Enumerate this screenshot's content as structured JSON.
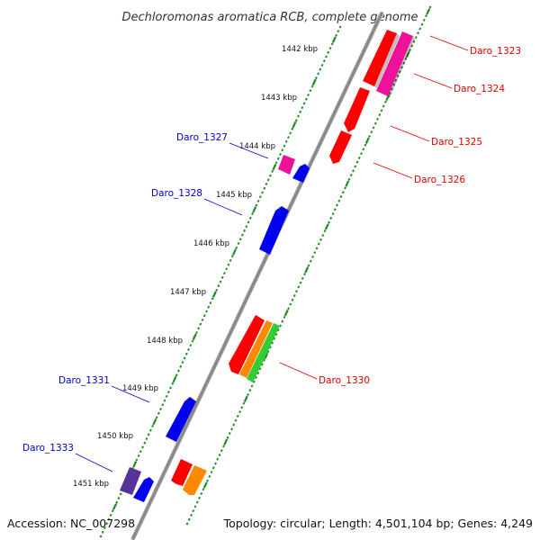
{
  "title": "Dechloromonas aromatica RCB, complete genome",
  "accession": "Accession: NC_007298",
  "topology": "Topology: circular; Length: 4,501,104 bp; Genes: 4,249",
  "colors": {
    "backbone": "#888888",
    "tick": "#1f8a1f",
    "label_forward": "#dd0000",
    "label_reverse": "#0000cc"
  },
  "scale": {
    "unit": "kbp",
    "ticks": [
      "1442 kbp",
      "1443 kbp",
      "1444 kbp",
      "1445 kbp",
      "1446 kbp",
      "1447 kbp",
      "1448 kbp",
      "1449 kbp",
      "1450 kbp",
      "1451 kbp"
    ]
  },
  "genes": {
    "forward": [
      {
        "label": "Daro_1323",
        "color": "#ff0000"
      },
      {
        "label": "Daro_1324",
        "color": "#ee1199"
      },
      {
        "label": "Daro_1325",
        "color": "#ff0000"
      },
      {
        "label": "Daro_1326",
        "color": "#ff0000"
      },
      {
        "label": "Daro_1330",
        "color": "#ff0000"
      },
      {
        "label": "",
        "color": "#ff8800"
      },
      {
        "label": "",
        "color": "#33cc33"
      },
      {
        "label": "",
        "color": "#ff0000"
      },
      {
        "label": "",
        "color": "#ff8800"
      }
    ],
    "reverse": [
      {
        "label": "Daro_1327",
        "color": "#ee1199"
      },
      {
        "label": "",
        "color": "#0000ee"
      },
      {
        "label": "Daro_1328",
        "color": "#0000ee"
      },
      {
        "label": "Daro_1331",
        "color": "#0000ee"
      },
      {
        "label": "Daro_1333",
        "color": "#553399"
      },
      {
        "label": "",
        "color": "#0000ee"
      }
    ]
  }
}
